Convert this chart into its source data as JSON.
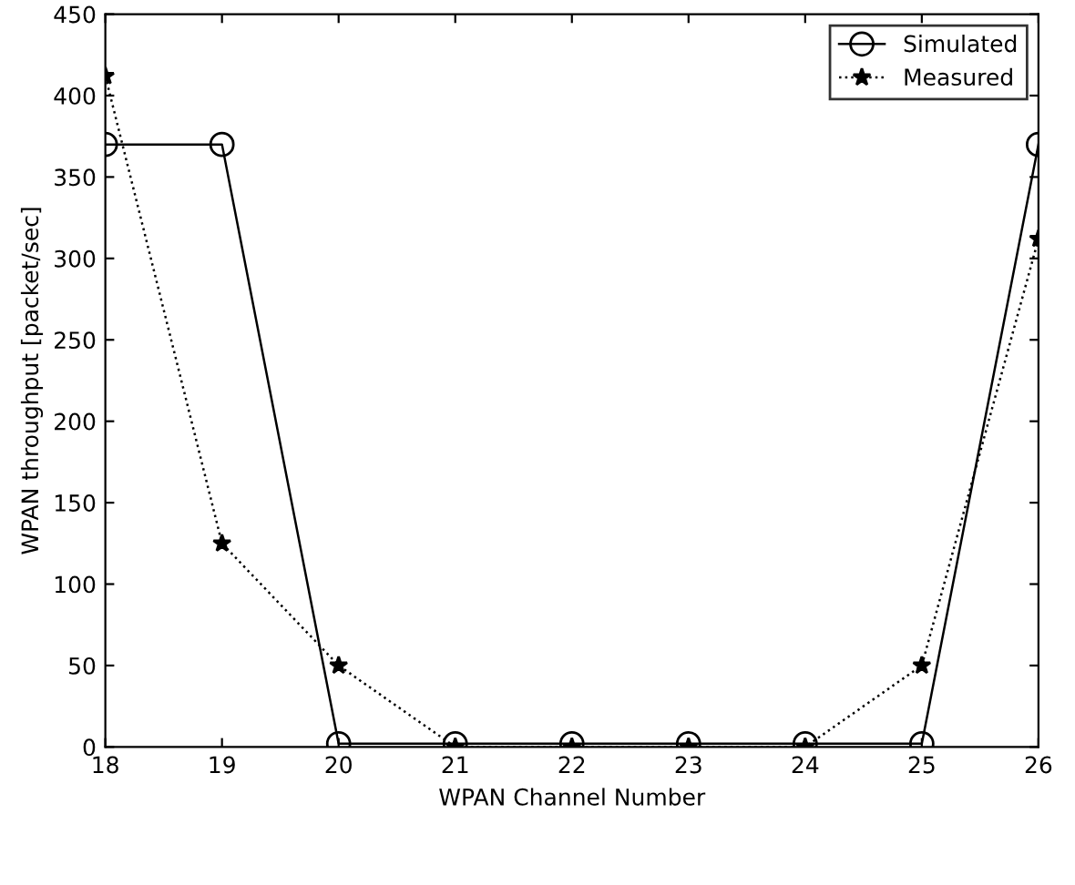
{
  "chart_data": {
    "type": "line",
    "xlabel": "WPAN Channel Number",
    "ylabel": "WPAN throughput [packet/sec]",
    "x": [
      18,
      19,
      20,
      21,
      22,
      23,
      24,
      25,
      26
    ],
    "series": [
      {
        "name": "Simulated",
        "color": "#000000",
        "marker": "circle",
        "line_style": "solid",
        "values": [
          370,
          370,
          2,
          2,
          2,
          2,
          2,
          2,
          370
        ]
      },
      {
        "name": "Measured",
        "color": "#000000",
        "marker": "star",
        "line_style": "dotted",
        "values": [
          412,
          125,
          50,
          0,
          0,
          0,
          0,
          50,
          312
        ]
      }
    ],
    "xlim": [
      18,
      26
    ],
    "xticks": [
      18,
      19,
      20,
      21,
      22,
      23,
      24,
      25,
      26
    ],
    "ylim": [
      0,
      450
    ],
    "yticks": [
      0,
      50,
      100,
      150,
      200,
      250,
      300,
      350,
      400,
      450
    ],
    "grid": false,
    "legend": "top right"
  }
}
